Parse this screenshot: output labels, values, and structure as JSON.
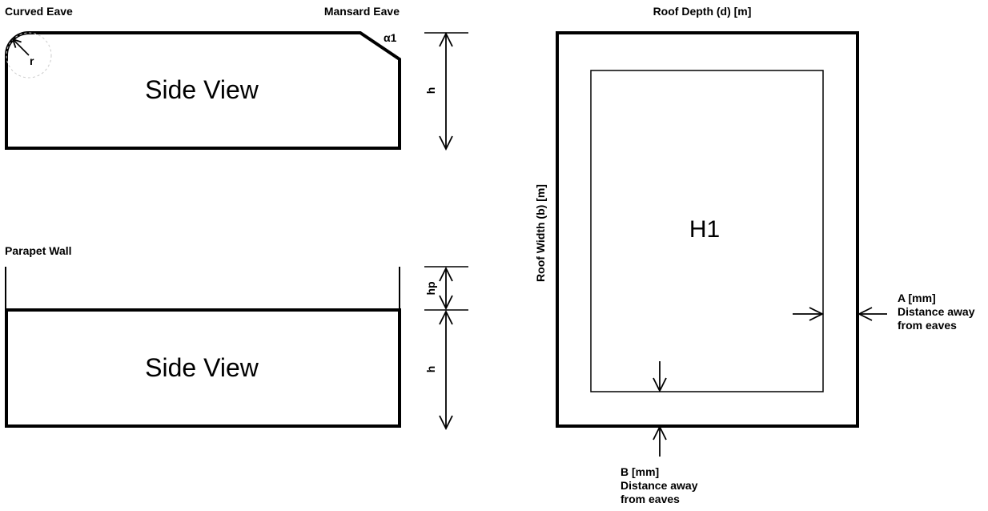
{
  "side_view_eaves": {
    "curved_eave_title": "Curved Eave",
    "mansard_eave_title": "Mansard Eave",
    "radius_label": "r",
    "angle_label": "α1",
    "view_label": "Side View",
    "height_label": "h"
  },
  "side_view_parapet": {
    "title": "Parapet Wall",
    "view_label": "Side View",
    "parapet_height_label": "hp",
    "height_label": "h"
  },
  "plan_view": {
    "depth_label": "Roof Depth (d) [m]",
    "width_label": "Roof Width (b) [m]",
    "zone_label": "H1",
    "a_label": {
      "line1": "A [mm]",
      "line2": "Distance away",
      "line3": "from eaves"
    },
    "b_label": {
      "line1": "B [mm]",
      "line2": "Distance away",
      "line3": "from eaves"
    }
  },
  "colors": {
    "line": "#000000",
    "background": "#ffffff",
    "radius_circle": "#cccccc"
  }
}
